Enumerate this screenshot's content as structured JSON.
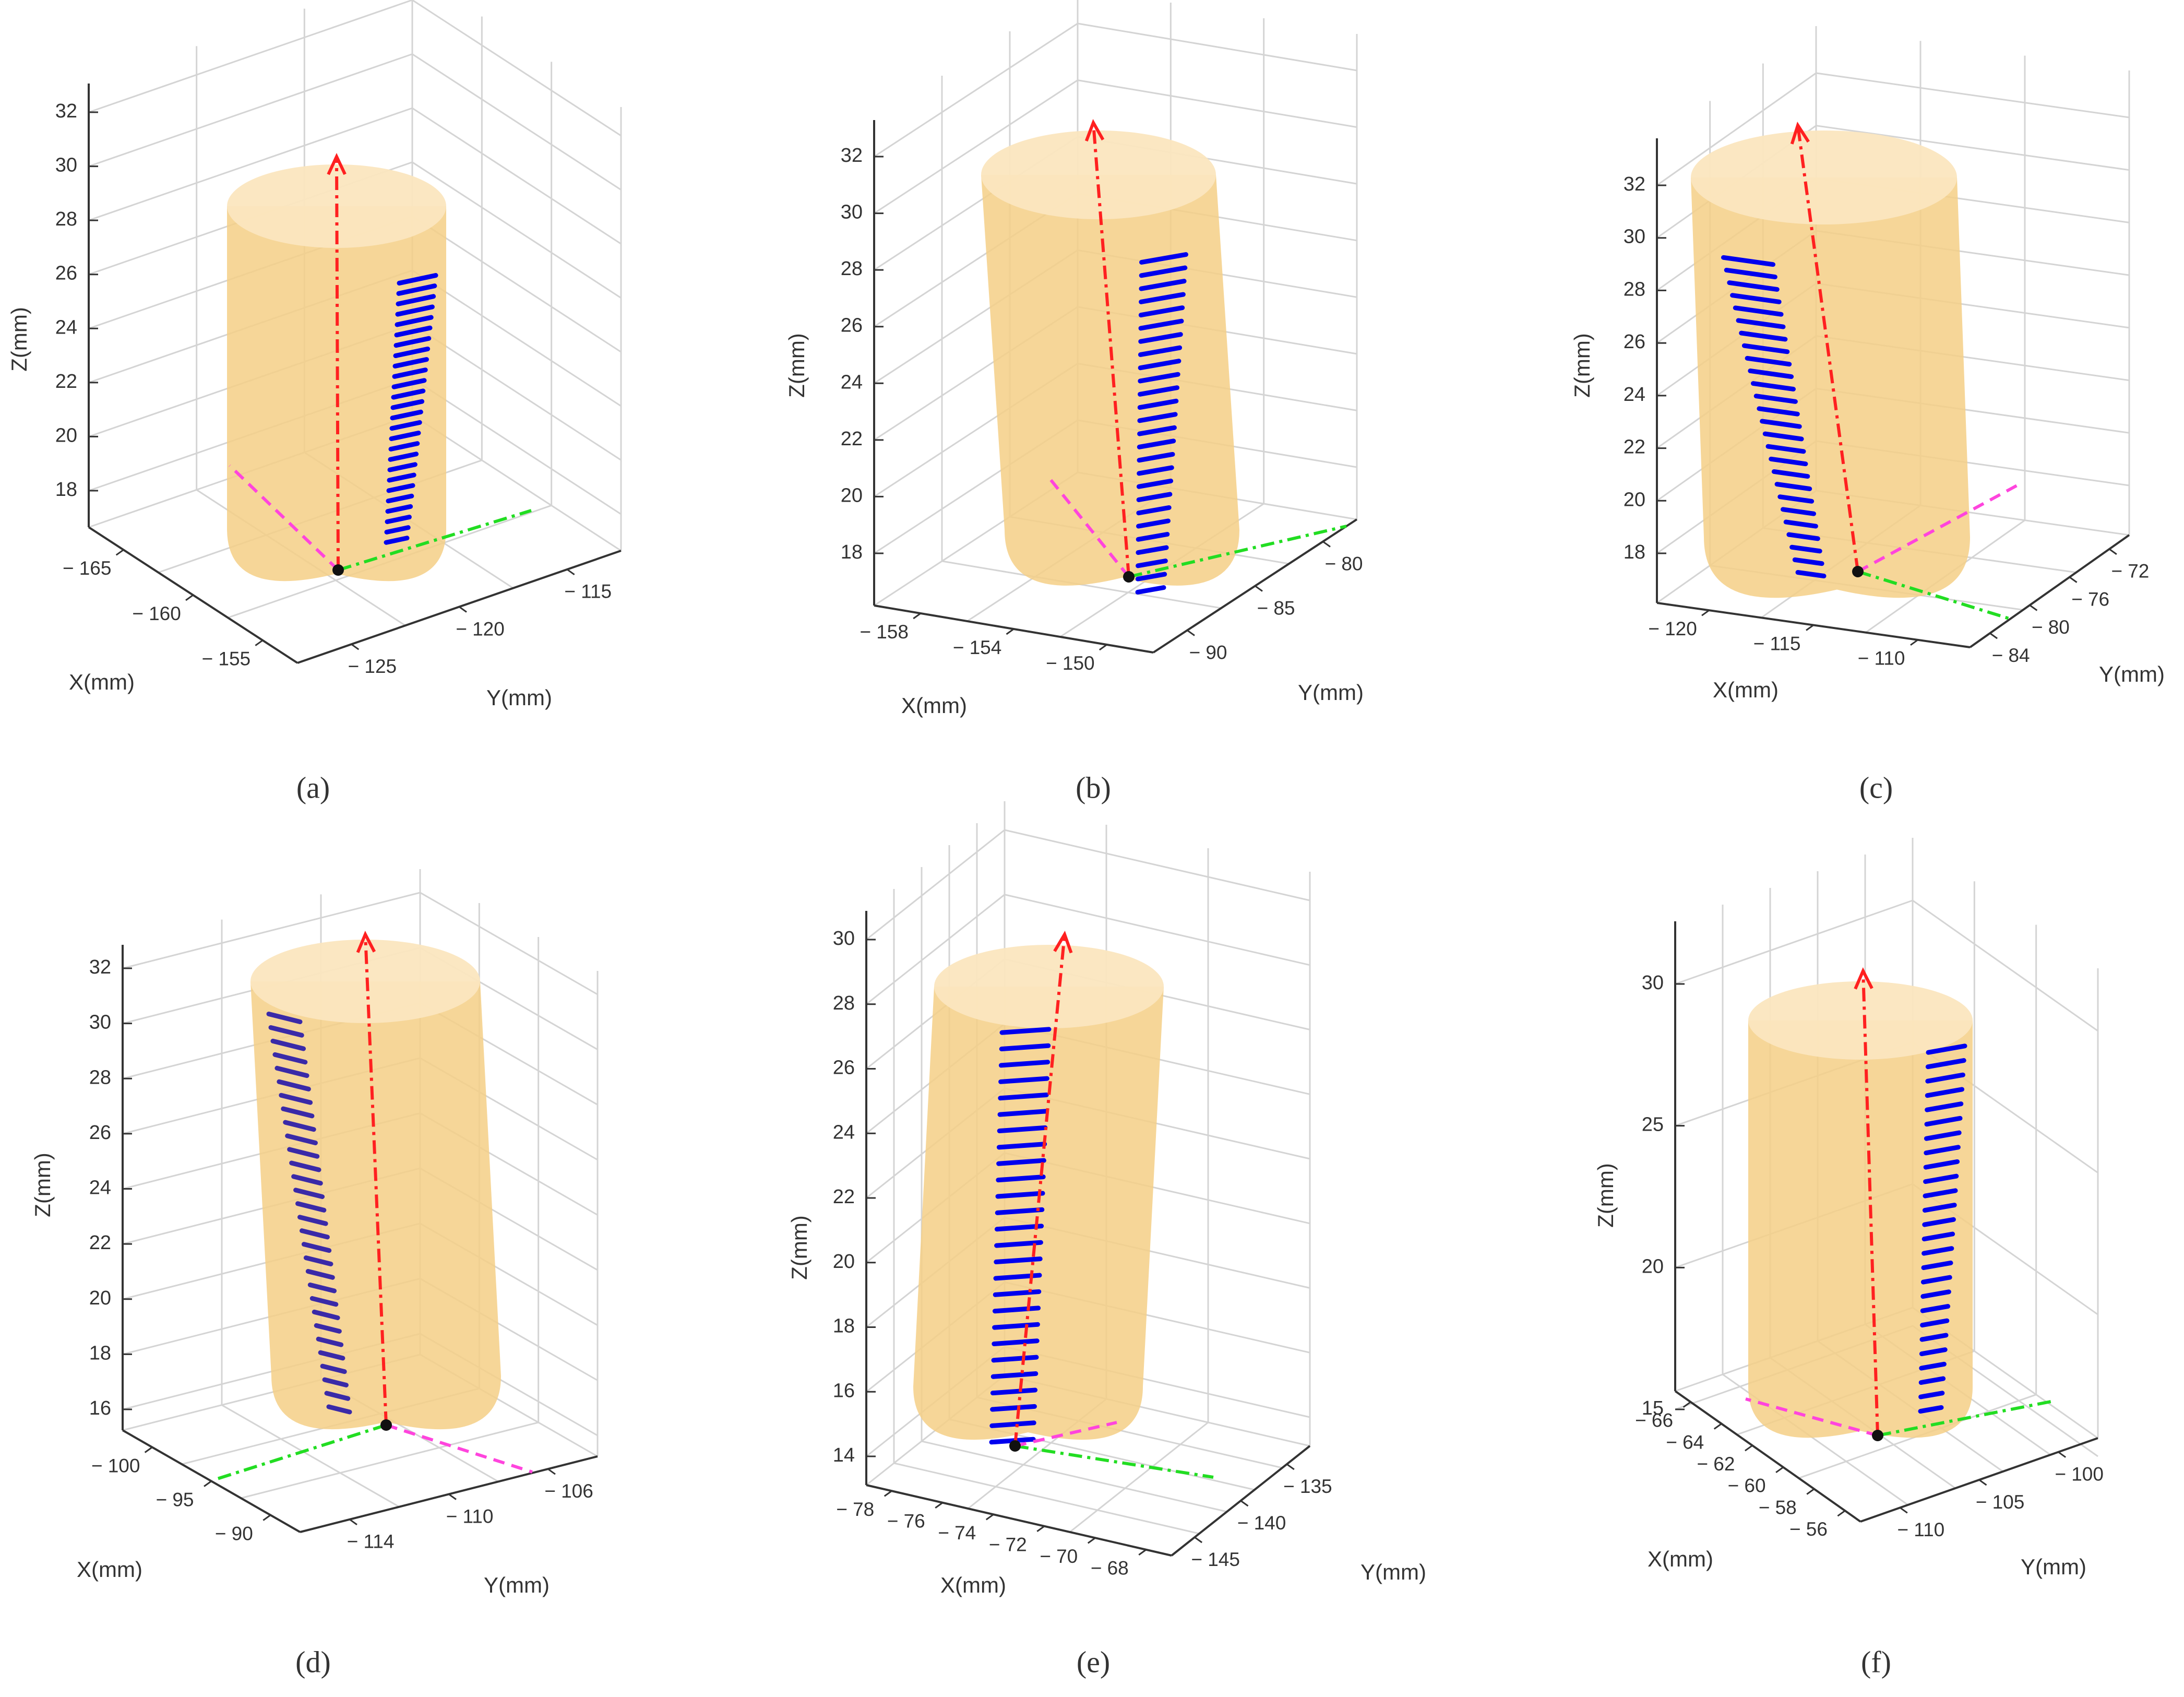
{
  "chart_data": [
    {
      "id": "a",
      "type": "3d-line",
      "caption": "(a)",
      "caption_letter": "a",
      "xlabel": "X(mm)",
      "ylabel": "Y(mm)",
      "zlabel": "Z(mm)",
      "zticks": [
        "18",
        "20",
        "22",
        "24",
        "26",
        "28",
        "30",
        "32"
      ],
      "xticks": [
        "− 165",
        "− 160",
        "− 155"
      ],
      "yticks": [
        "− 125",
        "− 120",
        "− 115"
      ],
      "series": [
        {
          "name": "tool-axis",
          "type": "dash-dot",
          "color": "#ff2020"
        },
        {
          "name": "feed-direction",
          "type": "dash-dot",
          "color": "#22dd22"
        },
        {
          "name": "normal-direction",
          "type": "dashed",
          "color": "#ff44dd"
        },
        {
          "name": "tool-contact-path",
          "type": "stripes",
          "color": "#0000ee",
          "count": 26
        },
        {
          "name": "tool-center-point",
          "type": "point",
          "color": "#111111"
        }
      ]
    },
    {
      "id": "b",
      "type": "3d-line",
      "caption": "(b)",
      "caption_letter": "b",
      "xlabel": "X(mm)",
      "ylabel": "Y(mm)",
      "zlabel": "Z(mm)",
      "zticks": [
        "18",
        "20",
        "22",
        "24",
        "26",
        "28",
        "30",
        "32"
      ],
      "xticks": [
        "− 158",
        "− 154",
        "− 150"
      ],
      "yticks": [
        "− 90",
        "− 85",
        "− 80"
      ],
      "series": [
        {
          "name": "tool-axis",
          "type": "dash-dot",
          "color": "#ff2020"
        },
        {
          "name": "feed-direction",
          "type": "dash-dot",
          "color": "#22dd22"
        },
        {
          "name": "normal-direction",
          "type": "dashed",
          "color": "#ff44dd"
        },
        {
          "name": "tool-contact-path",
          "type": "stripes",
          "color": "#0000ee",
          "count": 26
        },
        {
          "name": "tool-center-point",
          "type": "point",
          "color": "#111111"
        }
      ]
    },
    {
      "id": "c",
      "type": "3d-line",
      "caption": "(c)",
      "caption_letter": "c",
      "xlabel": "X(mm)",
      "ylabel": "Y(mm)",
      "zlabel": "Z(mm)",
      "zticks": [
        "18",
        "20",
        "22",
        "24",
        "26",
        "28",
        "30",
        "32"
      ],
      "xticks": [
        "− 120",
        "− 115",
        "− 110"
      ],
      "yticks": [
        "− 84",
        "− 80",
        "− 76",
        "− 72"
      ],
      "series": [
        {
          "name": "tool-axis",
          "type": "dash-dot",
          "color": "#ff2020"
        },
        {
          "name": "feed-direction",
          "type": "dash-dot",
          "color": "#22dd22"
        },
        {
          "name": "normal-direction",
          "type": "dashed",
          "color": "#ff44dd"
        },
        {
          "name": "tool-contact-path",
          "type": "stripes",
          "color": "#0000ee",
          "count": 26
        },
        {
          "name": "tool-center-point",
          "type": "point",
          "color": "#111111"
        }
      ]
    },
    {
      "id": "d",
      "type": "3d-line",
      "caption": "(d)",
      "caption_letter": "d",
      "xlabel": "X(mm)",
      "ylabel": "Y(mm)",
      "zlabel": "Z(mm)",
      "zticks": [
        "16",
        "18",
        "20",
        "22",
        "24",
        "26",
        "28",
        "30",
        "32"
      ],
      "xticks": [
        "− 100",
        "− 95",
        "− 90"
      ],
      "yticks": [
        "− 114",
        "− 110",
        "− 106"
      ],
      "series": [
        {
          "name": "tool-axis",
          "type": "dash-dot",
          "color": "#ff2020"
        },
        {
          "name": "feed-direction",
          "type": "dash-dot",
          "color": "#22dd22"
        },
        {
          "name": "normal-direction",
          "type": "dashed",
          "color": "#ff44dd"
        },
        {
          "name": "tool-contact-path",
          "type": "stripes",
          "color": "#3a2aa8",
          "count": 30
        },
        {
          "name": "tool-center-point",
          "type": "point",
          "color": "#111111"
        }
      ]
    },
    {
      "id": "e",
      "type": "3d-line",
      "caption": "(e)",
      "caption_letter": "e",
      "xlabel": "X(mm)",
      "ylabel": "Y(mm)",
      "zlabel": "Z(mm)",
      "zticks": [
        "14",
        "16",
        "18",
        "20",
        "22",
        "24",
        "26",
        "28",
        "30"
      ],
      "xticks": [
        "− 78",
        "− 76",
        "− 74",
        "− 72",
        "− 70",
        "− 68"
      ],
      "yticks": [
        "− 145",
        "− 140",
        "− 135"
      ],
      "series": [
        {
          "name": "tool-axis",
          "type": "dash-dot",
          "color": "#ff2020"
        },
        {
          "name": "feed-direction",
          "type": "dash-dot",
          "color": "#22dd22"
        },
        {
          "name": "normal-direction",
          "type": "dashed",
          "color": "#ff44dd"
        },
        {
          "name": "tool-contact-path",
          "type": "stripes",
          "color": "#0000ee",
          "count": 26
        },
        {
          "name": "tool-center-point",
          "type": "point",
          "color": "#111111"
        }
      ]
    },
    {
      "id": "f",
      "type": "3d-line",
      "caption": "(f)",
      "caption_letter": "f",
      "xlabel": "X(mm)",
      "ylabel": "Y(mm)",
      "zlabel": "Z(mm)",
      "zticks": [
        "15",
        "20",
        "25",
        "30"
      ],
      "xticks": [
        "− 66",
        "− 64",
        "− 62",
        "− 60",
        "− 58",
        "− 56"
      ],
      "yticks": [
        "− 110",
        "− 105",
        "− 100"
      ],
      "series": [
        {
          "name": "tool-axis",
          "type": "dash-dot",
          "color": "#ff2020"
        },
        {
          "name": "feed-direction",
          "type": "dash-dot",
          "color": "#22dd22"
        },
        {
          "name": "normal-direction",
          "type": "dashed",
          "color": "#ff44dd"
        },
        {
          "name": "tool-contact-path",
          "type": "stripes",
          "color": "#0000ee",
          "count": 26
        },
        {
          "name": "tool-center-point",
          "type": "point",
          "color": "#111111"
        }
      ]
    }
  ],
  "colors": {
    "cylinder": "#f5cf86",
    "cylinder_top": "#fbe6bf",
    "grid": "#d4d4d4",
    "axis": "#333333",
    "text": "#333333"
  }
}
